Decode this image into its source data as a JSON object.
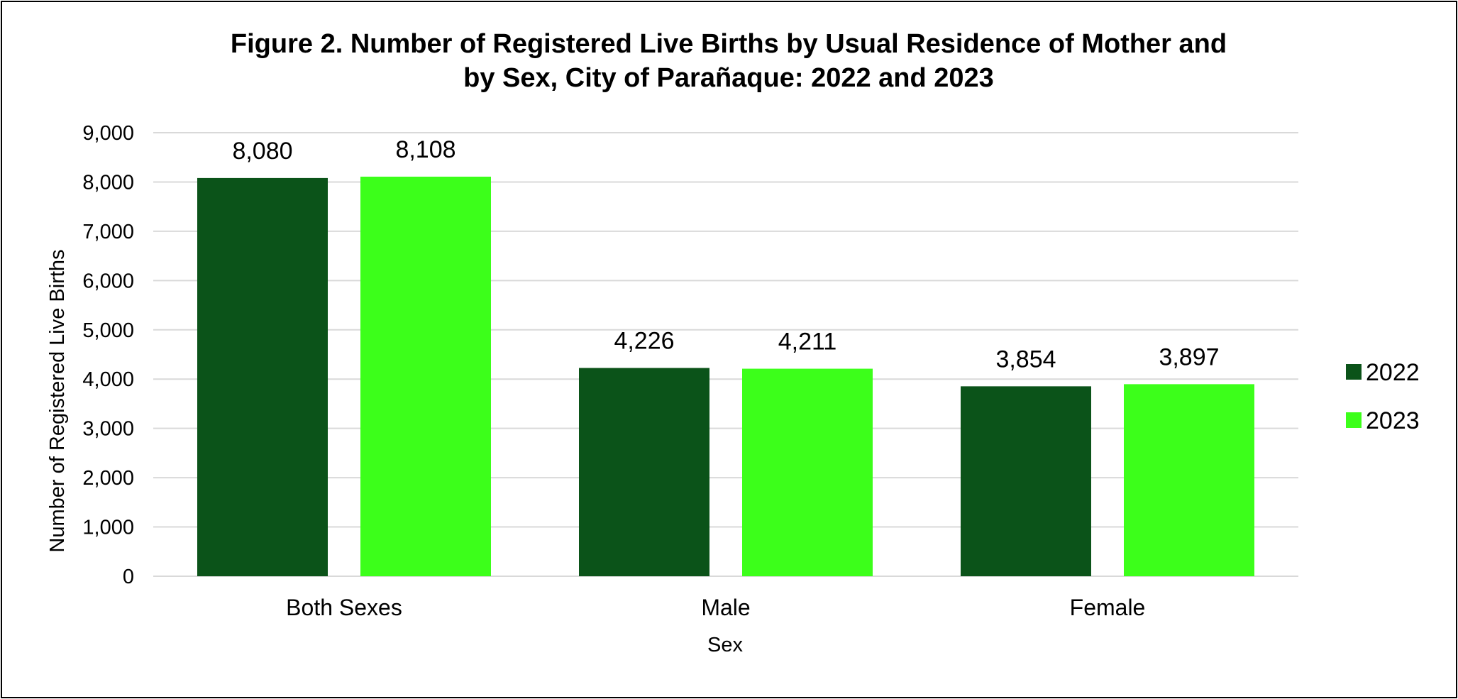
{
  "chart_data": {
    "type": "bar",
    "title_lines": [
      "Figure 2. Number of Registered Live Births by Usual Residence of Mother and",
      "by Sex, City of Parañaque: 2022 and 2023"
    ],
    "xlabel": "Sex",
    "ylabel": "Number of Registered Live Births",
    "categories": [
      "Both Sexes",
      "Male",
      "Female"
    ],
    "series": [
      {
        "name": "2022",
        "color": "#0b5319",
        "values": [
          8080,
          4226,
          3854
        ],
        "labels": [
          "8,080",
          "4,226",
          "3,854"
        ]
      },
      {
        "name": "2023",
        "color": "#3cff1a",
        "values": [
          8108,
          4211,
          3897
        ],
        "labels": [
          "8,108",
          "4,211",
          "3,897"
        ]
      }
    ],
    "ylim": [
      0,
      9000
    ],
    "yticks": [
      0,
      1000,
      2000,
      3000,
      4000,
      5000,
      6000,
      7000,
      8000,
      9000
    ],
    "ytick_labels": [
      "0",
      "1,000",
      "2,000",
      "3,000",
      "4,000",
      "5,000",
      "6,000",
      "7,000",
      "8,000",
      "9,000"
    ],
    "grid": true,
    "gridline_color": "#d9d9d9",
    "legend_position": "right"
  }
}
